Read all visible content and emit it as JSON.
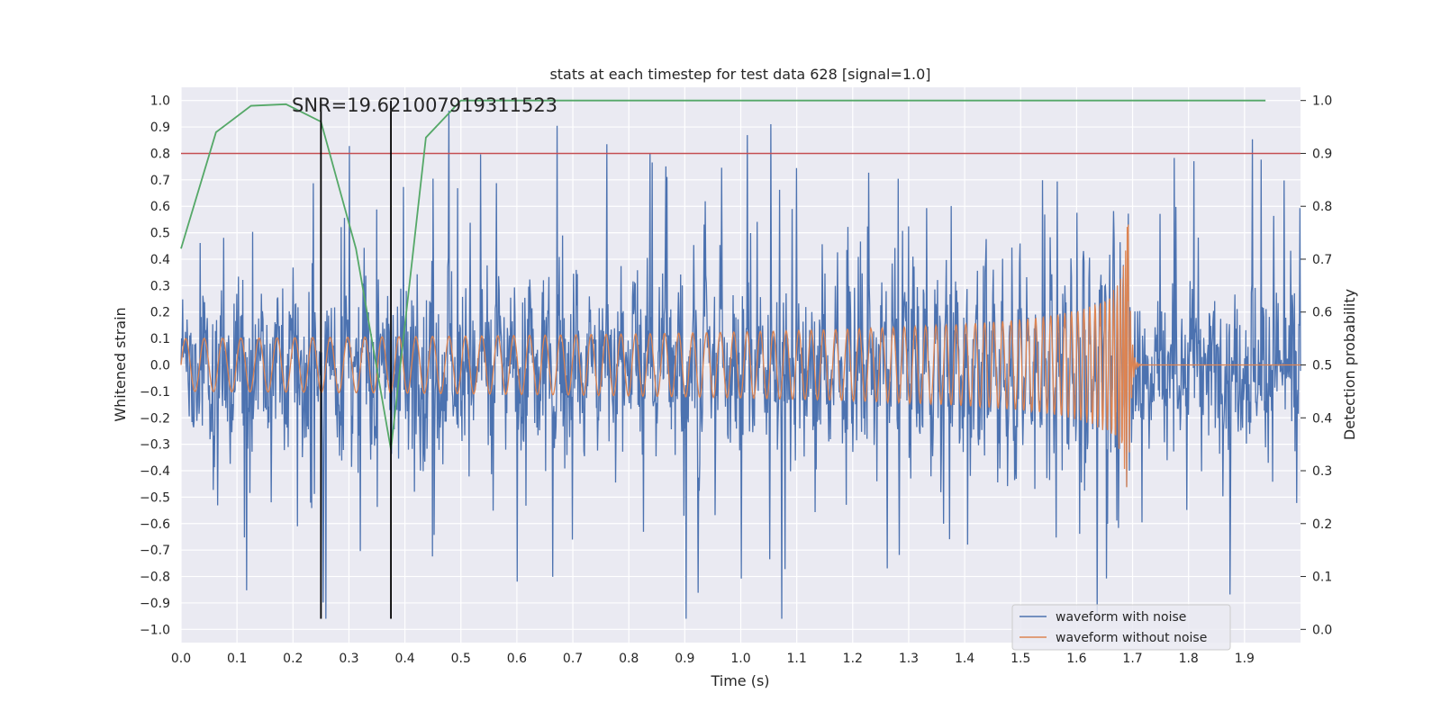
{
  "chart_data": {
    "type": "line",
    "title": "stats at each timestep for test data 628 [signal=1.0]",
    "xlabel": "Time (s)",
    "ylabel": "Whitened strain",
    "y2label": "Detection probability",
    "annotation": "SNR=19.621007919311523",
    "xlim": [
      0.0,
      2.0
    ],
    "ylim": [
      -1.05,
      1.05
    ],
    "y2lim": [
      -0.025,
      1.025
    ],
    "x_ticks": [
      "0.0",
      "0.1",
      "0.2",
      "0.3",
      "0.4",
      "0.5",
      "0.6",
      "0.7",
      "0.8",
      "0.9",
      "1.0",
      "1.1",
      "1.2",
      "1.3",
      "1.4",
      "1.5",
      "1.6",
      "1.7",
      "1.8",
      "1.9"
    ],
    "y_ticks": [
      "1.0",
      "0.9",
      "0.8",
      "0.7",
      "0.6",
      "0.5",
      "0.4",
      "0.3",
      "0.2",
      "0.1",
      "0.0",
      "−0.1",
      "−0.2",
      "−0.3",
      "−0.4",
      "−0.5",
      "−0.6",
      "−0.7",
      "−0.8",
      "−0.9",
      "−1.0"
    ],
    "y2_ticks": [
      "1.0",
      "0.9",
      "0.8",
      "0.7",
      "0.6",
      "0.5",
      "0.4",
      "0.3",
      "0.2",
      "0.1",
      "0.0"
    ],
    "legend": [
      "waveform with noise",
      "waveform without noise"
    ],
    "legend_position": "lower-right",
    "colors": {
      "noisy": "#4c72b0",
      "clean": "#dd8452",
      "probability": "#55a868",
      "threshold": "#c44e52",
      "marker": "#000000",
      "background": "#eaeaf2"
    },
    "threshold": 0.9,
    "markers_x": [
      0.25,
      0.375
    ],
    "probability": {
      "x": [
        0.0,
        0.0625,
        0.125,
        0.1875,
        0.25,
        0.3125,
        0.375,
        0.4375,
        0.5,
        0.5625,
        0.625,
        0.6875,
        0.75,
        0.8125,
        0.875,
        0.9375,
        1.0,
        1.0625,
        1.125,
        1.1875,
        1.25,
        1.3125,
        1.375,
        1.4375,
        1.5,
        1.5625,
        1.625,
        1.6875,
        1.75,
        1.8125,
        1.875,
        1.9375
      ],
      "y": [
        0.72,
        0.94,
        0.99,
        0.993,
        0.96,
        0.72,
        0.34,
        0.93,
        1.0,
        1.0,
        1.0,
        1.0,
        1.0,
        1.0,
        1.0,
        1.0,
        1.0,
        1.0,
        1.0,
        1.0,
        1.0,
        1.0,
        1.0,
        1.0,
        1.0,
        1.0,
        1.0,
        1.0,
        1.0,
        1.0,
        1.0,
        1.0
      ]
    },
    "series": [
      {
        "name": "waveform with noise",
        "description": "whitened noisy strain, roughly +/-0.4 with spikes to +/-1.0"
      },
      {
        "name": "waveform without noise",
        "description": "clean chirp signal, amplitude 0.1 rising to ~0.6 at merger near t=1.69s, ringdown to 0 by 1.71s"
      }
    ]
  }
}
